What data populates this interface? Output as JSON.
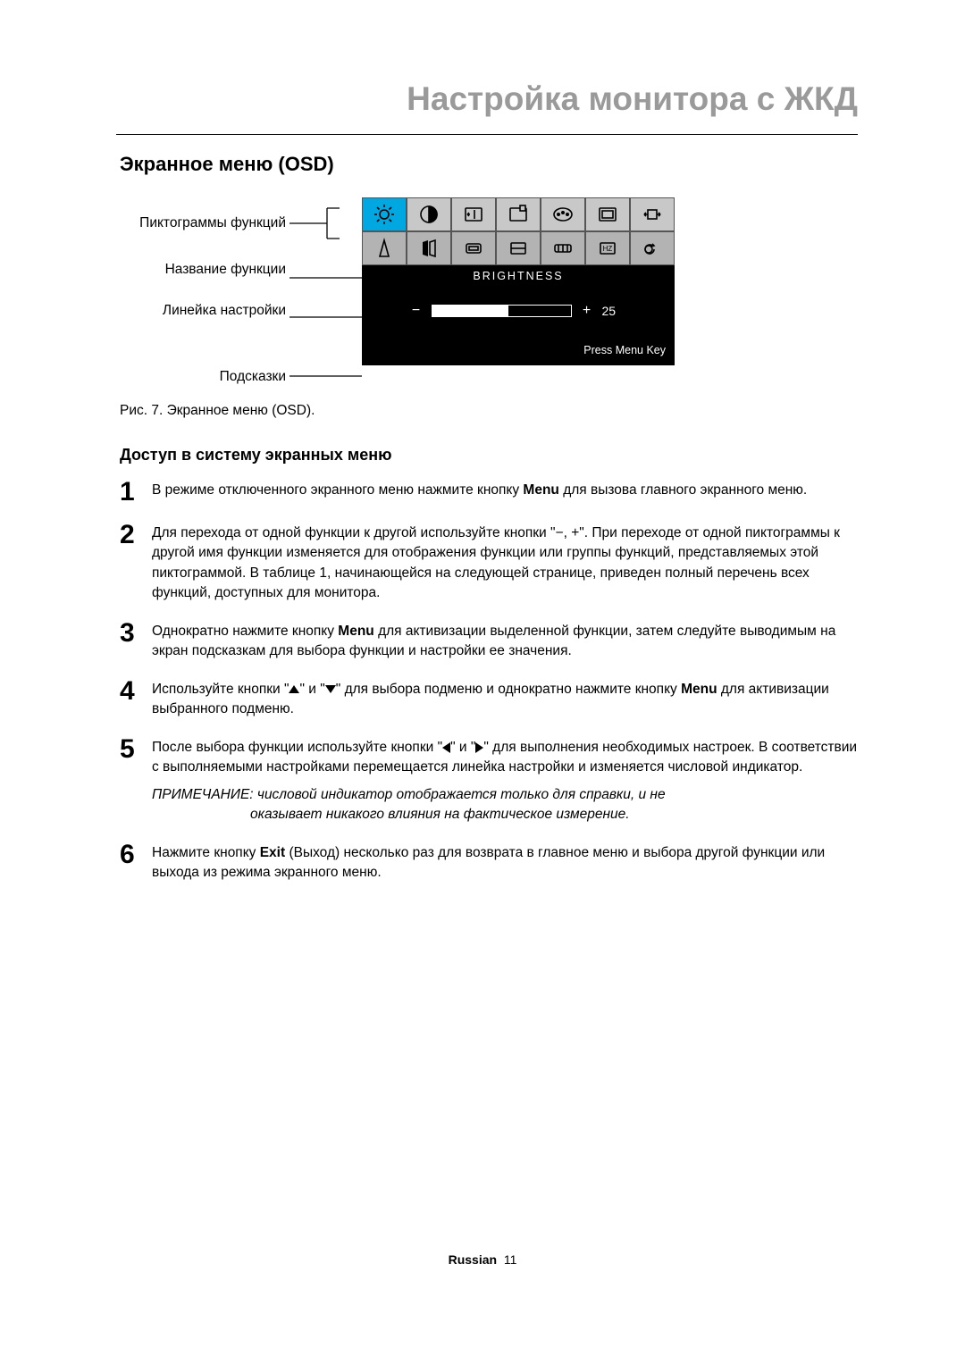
{
  "title": "Настройка монитора с ЖКД",
  "section": "Экранное меню (OSD)",
  "labels": {
    "icons": "Пиктограммы функций",
    "name": "Название функции",
    "slider": "Линейка настройки",
    "hints": "Подсказки"
  },
  "osd": {
    "function_name": "BRIGHTNESS",
    "slider": {
      "minus": "−",
      "plus": "+",
      "value": "25",
      "fill_pct": 55
    },
    "hint": "Press Menu Key",
    "icon_rows": 2,
    "icon_cols": 7,
    "selected_row": 0,
    "selected_col": 0,
    "colors": {
      "box_bg": "#000000",
      "cell_bg": "#c8c8c8",
      "cell_border": "#555555",
      "selected_bg": "#00a7e0",
      "text": "#ffffff"
    }
  },
  "caption": "Рис. 7. Экранное меню (OSD).",
  "subheading": "Доступ в систему экранных меню",
  "steps": [
    {
      "n": "1",
      "html": "В режиме отключенного экранного меню нажмите кнопку <b>Menu</b> для вызова главного экранного меню."
    },
    {
      "n": "2",
      "html": "Для перехода от одной функции к другой используйте кнопки \"−, +\". При переходе от одной пиктограммы к другой имя функции изменяется для отображения функции или группы функций, представляемых этой пиктограммой. В таблице 1, начинающейся на следующей странице, приведен полный перечень всех функций, доступных для монитора."
    },
    {
      "n": "3",
      "html": "Однократно нажмите кнопку <b>Menu</b> для активизации выделенной функции, затем следуйте выводимым на экран подсказкам для выбора функции и настройки ее значения."
    },
    {
      "n": "4",
      "html": "Используйте кнопки \"<span class='tri tri-up'></span>\" и \"<span class='tri tri-dn'></span>\" для выбора подменю и однократно нажмите кнопку <b>Menu</b> для активизации выбранного подменю."
    },
    {
      "n": "5",
      "html": "После выбора функции используйте кнопки \"<span class='tri tri-l'></span>\" и \"<span class='tri tri-r'></span>\" для выполнения необходимых настроек. В соответствии с выполняемыми настройками перемещается линейка настройки и изменяется числовой индикатор.<div class='note'>ПРИМЕЧАНИЕ: числовой индикатор отображается только для справки, и не</div><span class='note-indent'>оказывает никакого влияния на фактическое измерение.</span>"
    },
    {
      "n": "6",
      "html": "Нажмите кнопку <b>Exit</b> (Выход) несколько раз для возврата в главное меню и выбора другой функции или выхода из режима экранного меню."
    }
  ],
  "footer": {
    "lang": "Russian",
    "page": "11"
  }
}
